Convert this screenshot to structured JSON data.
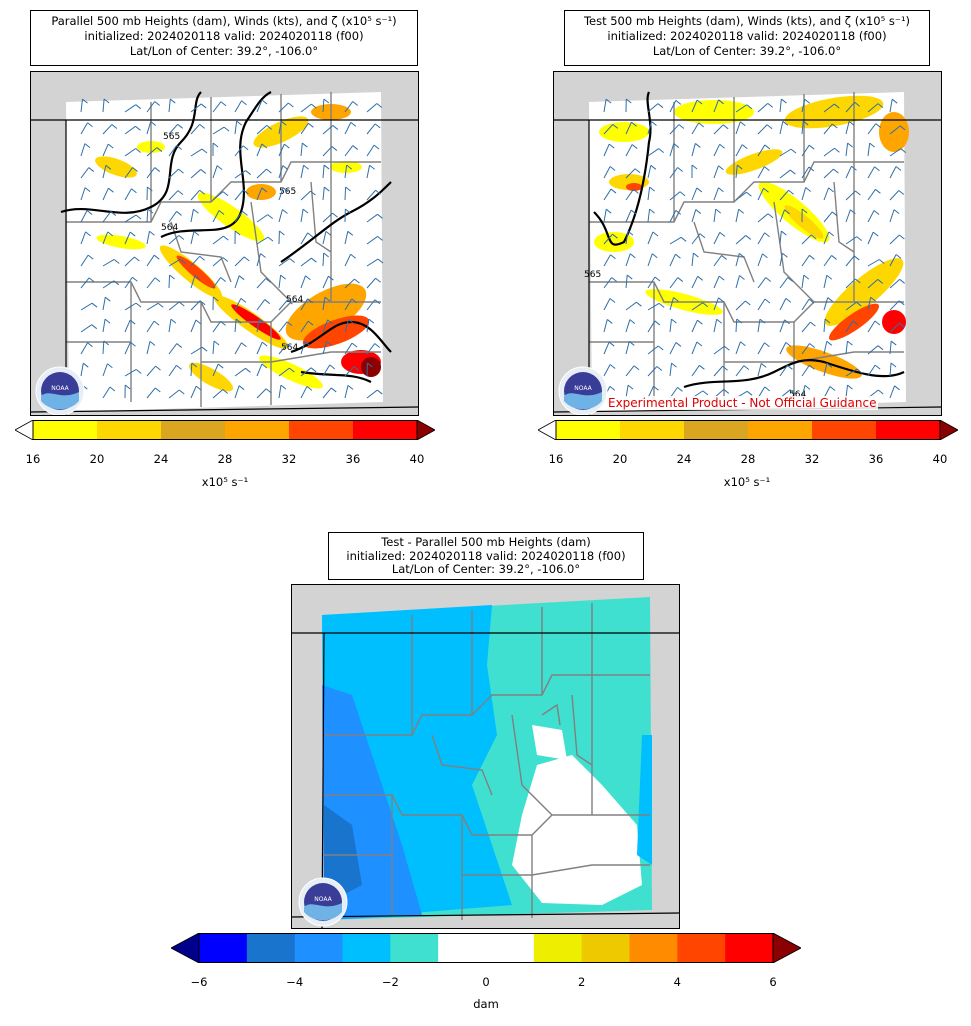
{
  "panels": {
    "parallel": {
      "title_line1": "Parallel 500 mb Heights (dam), Winds (kts), and ζ (x10⁵ s⁻¹)",
      "title_line2": "initialized: 2024020118 valid: 2024020118 (f00)",
      "title_line3": "Lat/Lon of Center: 39.2°, -106.0°",
      "contour_labels": [
        "565",
        "565",
        "564",
        "564",
        "564"
      ],
      "colorbar_ticks": [
        "16",
        "20",
        "24",
        "28",
        "32",
        "36",
        "40"
      ],
      "colorbar_label": "x10⁵ s⁻¹"
    },
    "test": {
      "title_line1": "Test 500 mb Heights (dam), Winds (kts), and ζ (x10⁵ s⁻¹)",
      "title_line2": "initialized: 2024020118 valid: 2024020118 (f00)",
      "title_line3": "Lat/Lon of Center: 39.2°, -106.0°",
      "contour_labels": [
        "565",
        "564"
      ],
      "colorbar_ticks": [
        "16",
        "20",
        "24",
        "28",
        "32",
        "36",
        "40"
      ],
      "colorbar_label": "x10⁵ s⁻¹",
      "experimental_note": "Experimental Product - Not Official Guidance"
    },
    "difference": {
      "title_line1": "Test - Parallel 500 mb Heights (dam)",
      "title_line2": "initialized: 2024020118 valid: 2024020118 (f00)",
      "title_line3": "Lat/Lon of Center: 39.2°, -106.0°",
      "colorbar_ticks": [
        "−6",
        "−4",
        "−2",
        "0",
        "2",
        "4",
        "6"
      ],
      "colorbar_label": "dam"
    }
  },
  "logo_text": "NOAA",
  "colors": {
    "vorticity": [
      "#ffff00",
      "#ffd700",
      "#daa520",
      "#ffa500",
      "#ff4500",
      "#ff0000",
      "#8b0000"
    ],
    "difference": [
      "#00008b",
      "#0000ff",
      "#1874cd",
      "#1e90ff",
      "#00bfff",
      "#40e0d0",
      "#ffffff",
      "#ffffff",
      "#eeee00",
      "#eec900",
      "#ff8c00",
      "#ff4500",
      "#ff0000",
      "#8b0000"
    ],
    "land_outside": "#d3d3d3",
    "county_lines": "#808080",
    "barb": "#2f6fa8",
    "note_red": "#e00000"
  }
}
